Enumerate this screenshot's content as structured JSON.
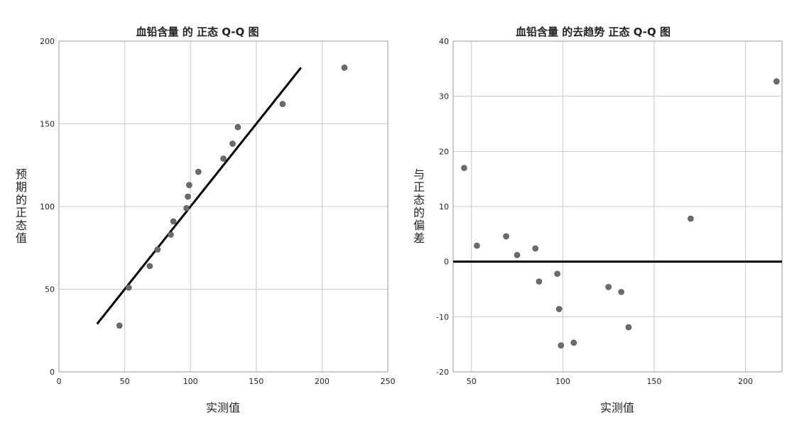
{
  "chart_data": [
    {
      "type": "scatter",
      "title": "血铅含量 的 正态 Q-Q 图",
      "xlabel": "实测值",
      "ylabel": "预期的正态值",
      "xlim": [
        0,
        250
      ],
      "ylim": [
        0,
        200
      ],
      "xticks": [
        0,
        50,
        100,
        150,
        200,
        250
      ],
      "yticks": [
        0,
        50,
        100,
        150,
        200
      ],
      "grid": true,
      "points": [
        {
          "x": 46,
          "y": 28
        },
        {
          "x": 53,
          "y": 51
        },
        {
          "x": 69,
          "y": 64
        },
        {
          "x": 75,
          "y": 74
        },
        {
          "x": 85,
          "y": 83
        },
        {
          "x": 87,
          "y": 91
        },
        {
          "x": 97,
          "y": 99
        },
        {
          "x": 98,
          "y": 106
        },
        {
          "x": 99,
          "y": 113
        },
        {
          "x": 106,
          "y": 121
        },
        {
          "x": 125,
          "y": 129
        },
        {
          "x": 132,
          "y": 138
        },
        {
          "x": 136,
          "y": 148
        },
        {
          "x": 170,
          "y": 162
        },
        {
          "x": 217,
          "y": 184
        }
      ],
      "reference_line": {
        "x1": 29,
        "y1": 29,
        "x2": 184,
        "y2": 184
      }
    },
    {
      "type": "scatter",
      "title": "血铅含量 的去趋势 正态 Q-Q 图",
      "xlabel": "实测值",
      "ylabel": "与正态的偏差",
      "xlim": [
        40,
        220
      ],
      "ylim": [
        -20,
        40
      ],
      "xticks": [
        50,
        100,
        150,
        200
      ],
      "yticks": [
        -20,
        -10,
        0,
        10,
        20,
        30,
        40
      ],
      "grid": true,
      "points": [
        {
          "x": 46,
          "y": 17
        },
        {
          "x": 53,
          "y": 2.9
        },
        {
          "x": 69,
          "y": 4.6
        },
        {
          "x": 75,
          "y": 1.2
        },
        {
          "x": 85,
          "y": 2.4
        },
        {
          "x": 87,
          "y": -3.6
        },
        {
          "x": 97,
          "y": -2.2
        },
        {
          "x": 98,
          "y": -8.6
        },
        {
          "x": 99,
          "y": -15.2
        },
        {
          "x": 106,
          "y": -14.7
        },
        {
          "x": 125,
          "y": -4.6
        },
        {
          "x": 132,
          "y": -5.5
        },
        {
          "x": 136,
          "y": -11.9
        },
        {
          "x": 170,
          "y": 7.8
        },
        {
          "x": 217,
          "y": 32.7
        }
      ],
      "reference_line": {
        "y": 0
      }
    }
  ]
}
